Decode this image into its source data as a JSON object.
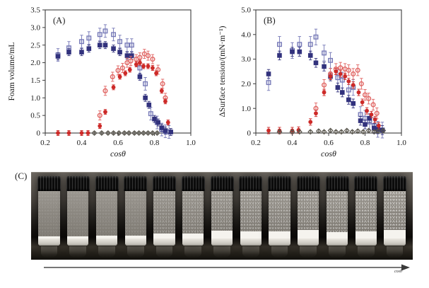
{
  "figure": {
    "background": "#ffffff",
    "axis_color": "#3d3d3d",
    "text_color": "#1a1a1a"
  },
  "chart_data": [
    {
      "id": "A",
      "type": "scatter",
      "panel_label": "(A)",
      "xlabel": "cosθ",
      "ylabel": "Foam volume/mL",
      "xlim": [
        0.2,
        1.0
      ],
      "ylim": [
        0,
        3.5
      ],
      "xticks": [
        0.2,
        0.4,
        0.6,
        0.8,
        1.0
      ],
      "xtick_labels": [
        "0.2",
        "0.4",
        "0.6",
        "0.8",
        "1.0"
      ],
      "yticks": [
        0,
        0.5,
        1.0,
        1.5,
        2.0,
        2.5,
        3.0,
        3.5
      ],
      "ytick_labels": [
        "0",
        "0.5",
        "1.0",
        "1.5",
        "2.0",
        "2.5",
        "3.0",
        "3.5"
      ],
      "grid": false,
      "legend": "none",
      "series": [
        {
          "name": "blue-open-square",
          "marker": "square-open",
          "color": "#7477b6",
          "err": 0.18,
          "points": [
            [
              0.27,
              2.22
            ],
            [
              0.33,
              2.42
            ],
            [
              0.4,
              2.6
            ],
            [
              0.44,
              2.7
            ],
            [
              0.5,
              2.8
            ],
            [
              0.53,
              2.9
            ],
            [
              0.575,
              2.8
            ],
            [
              0.61,
              2.6
            ],
            [
              0.65,
              2.5
            ],
            [
              0.675,
              2.5
            ],
            [
              0.72,
              1.85
            ],
            [
              0.75,
              1.4
            ],
            [
              0.78,
              0.55
            ],
            [
              0.815,
              0.3
            ],
            [
              0.84,
              0.1
            ],
            [
              0.86,
              0.05
            ],
            [
              0.88,
              0.03
            ]
          ]
        },
        {
          "name": "blue-filled-square",
          "marker": "square-filled",
          "color": "#32327d",
          "err": 0.1,
          "points": [
            [
              0.27,
              2.18
            ],
            [
              0.33,
              2.3
            ],
            [
              0.4,
              2.3
            ],
            [
              0.44,
              2.4
            ],
            [
              0.5,
              2.5
            ],
            [
              0.53,
              2.5
            ],
            [
              0.575,
              2.4
            ],
            [
              0.61,
              2.3
            ],
            [
              0.65,
              2.2
            ],
            [
              0.675,
              2.2
            ],
            [
              0.72,
              1.6
            ],
            [
              0.75,
              1.0
            ],
            [
              0.77,
              0.8
            ],
            [
              0.8,
              0.4
            ],
            [
              0.82,
              0.3
            ],
            [
              0.84,
              0.15
            ],
            [
              0.86,
              0.07
            ],
            [
              0.89,
              0.03
            ]
          ]
        },
        {
          "name": "red-open-circle",
          "marker": "circle-open",
          "color": "#e06361",
          "err": 0.13,
          "points": [
            [
              0.5,
              0.5
            ],
            [
              0.53,
              1.2
            ],
            [
              0.57,
              1.6
            ],
            [
              0.6,
              1.78
            ],
            [
              0.625,
              1.85
            ],
            [
              0.65,
              2.0
            ],
            [
              0.67,
              2.05
            ],
            [
              0.7,
              2.1
            ],
            [
              0.72,
              2.15
            ],
            [
              0.745,
              2.25
            ],
            [
              0.765,
              2.2
            ],
            [
              0.79,
              2.1
            ],
            [
              0.82,
              1.8
            ],
            [
              0.845,
              1.4
            ],
            [
              0.86,
              1.0
            ]
          ]
        },
        {
          "name": "red-filled-circle",
          "marker": "circle-filled",
          "color": "#cd2a28",
          "err": 0.07,
          "points": [
            [
              0.27,
              0.0
            ],
            [
              0.33,
              0.0
            ],
            [
              0.4,
              0.0
            ],
            [
              0.435,
              0.0
            ],
            [
              0.5,
              0.2
            ],
            [
              0.53,
              0.6
            ],
            [
              0.575,
              1.3
            ],
            [
              0.61,
              1.6
            ],
            [
              0.64,
              1.7
            ],
            [
              0.665,
              1.8
            ],
            [
              0.7,
              1.95
            ],
            [
              0.72,
              2.0
            ],
            [
              0.74,
              1.9
            ],
            [
              0.765,
              1.9
            ],
            [
              0.79,
              1.85
            ],
            [
              0.81,
              1.7
            ],
            [
              0.84,
              1.2
            ],
            [
              0.86,
              0.9
            ],
            [
              0.875,
              0.3
            ]
          ]
        },
        {
          "name": "gray-open-diamond",
          "marker": "diamond-open",
          "color": "#57544b",
          "err": 0.04,
          "points": [
            [
              0.47,
              0
            ],
            [
              0.51,
              0
            ],
            [
              0.545,
              0
            ],
            [
              0.575,
              0
            ],
            [
              0.605,
              0
            ],
            [
              0.635,
              0
            ],
            [
              0.66,
              0
            ],
            [
              0.69,
              0
            ],
            [
              0.715,
              0
            ],
            [
              0.74,
              0
            ],
            [
              0.765,
              0
            ],
            [
              0.79,
              0
            ],
            [
              0.815,
              0
            ]
          ]
        }
      ]
    },
    {
      "id": "B",
      "type": "scatter",
      "panel_label": "(B)",
      "xlabel": "cosθ",
      "ylabel": "ΔSurface tension/(mN·m⁻¹)",
      "xlim": [
        0.2,
        1.0
      ],
      "ylim": [
        0,
        5.0
      ],
      "xticks": [
        0.2,
        0.4,
        0.6,
        0.8,
        1.0
      ],
      "xtick_labels": [
        "0.2",
        "0.4",
        "0.6",
        "0.8",
        "1.0"
      ],
      "yticks": [
        0,
        1.0,
        2.0,
        3.0,
        4.0,
        5.0
      ],
      "ytick_labels": [
        "0",
        "1.0",
        "2.0",
        "3.0",
        "4.0",
        "5.0"
      ],
      "grid": false,
      "legend": "none",
      "series": [
        {
          "name": "blue-open-square",
          "marker": "square-open",
          "color": "#7477b6",
          "err": 0.32,
          "points": [
            [
              0.27,
              2.05
            ],
            [
              0.33,
              3.6
            ],
            [
              0.4,
              3.35
            ],
            [
              0.44,
              3.6
            ],
            [
              0.5,
              3.6
            ],
            [
              0.53,
              3.9
            ],
            [
              0.575,
              3.25
            ],
            [
              0.61,
              2.95
            ],
            [
              0.65,
              2.25
            ],
            [
              0.675,
              2.15
            ],
            [
              0.71,
              1.75
            ],
            [
              0.735,
              1.85
            ],
            [
              0.775,
              0.75
            ],
            [
              0.8,
              0.6
            ],
            [
              0.825,
              0.45
            ],
            [
              0.85,
              0.3
            ],
            [
              0.87,
              0.15
            ],
            [
              0.895,
              0.12
            ]
          ]
        },
        {
          "name": "blue-filled-square",
          "marker": "square-filled",
          "color": "#32327d",
          "err": 0.18,
          "points": [
            [
              0.27,
              2.4
            ],
            [
              0.33,
              3.15
            ],
            [
              0.4,
              3.3
            ],
            [
              0.44,
              3.3
            ],
            [
              0.5,
              3.15
            ],
            [
              0.53,
              2.85
            ],
            [
              0.575,
              2.7
            ],
            [
              0.61,
              2.3
            ],
            [
              0.65,
              1.85
            ],
            [
              0.675,
              1.65
            ],
            [
              0.71,
              1.35
            ],
            [
              0.735,
              1.2
            ],
            [
              0.775,
              0.5
            ],
            [
              0.8,
              0.35
            ],
            [
              0.825,
              0.6
            ],
            [
              0.85,
              0.2
            ],
            [
              0.87,
              0.15
            ],
            [
              0.895,
              0.12
            ]
          ]
        },
        {
          "name": "red-open-circle",
          "marker": "circle-open",
          "color": "#e06361",
          "err": 0.22,
          "points": [
            [
              0.53,
              1.0
            ],
            [
              0.575,
              1.95
            ],
            [
              0.61,
              2.4
            ],
            [
              0.64,
              2.6
            ],
            [
              0.665,
              2.65
            ],
            [
              0.69,
              2.6
            ],
            [
              0.71,
              2.55
            ],
            [
              0.735,
              2.4
            ],
            [
              0.76,
              2.55
            ],
            [
              0.78,
              2.0
            ],
            [
              0.8,
              1.55
            ],
            [
              0.82,
              1.4
            ],
            [
              0.845,
              1.15
            ],
            [
              0.865,
              0.8
            ]
          ]
        },
        {
          "name": "red-filled-circle",
          "marker": "circle-filled",
          "color": "#cd2a28",
          "err": 0.13,
          "points": [
            [
              0.27,
              0.1
            ],
            [
              0.33,
              0.1
            ],
            [
              0.4,
              0.1
            ],
            [
              0.435,
              0.12
            ],
            [
              0.5,
              0.45
            ],
            [
              0.53,
              0.8
            ],
            [
              0.575,
              1.65
            ],
            [
              0.61,
              2.3
            ],
            [
              0.64,
              2.5
            ],
            [
              0.665,
              2.4
            ],
            [
              0.69,
              2.3
            ],
            [
              0.71,
              2.1
            ],
            [
              0.735,
              1.95
            ],
            [
              0.765,
              1.65
            ],
            [
              0.785,
              1.25
            ],
            [
              0.81,
              0.9
            ],
            [
              0.835,
              0.75
            ],
            [
              0.855,
              0.55
            ],
            [
              0.875,
              0.3
            ]
          ]
        },
        {
          "name": "gray-open-diamond",
          "marker": "diamond-open",
          "color": "#57544b",
          "err": 0.05,
          "points": [
            [
              0.33,
              0.05
            ],
            [
              0.4,
              0.05
            ],
            [
              0.44,
              0.05
            ],
            [
              0.5,
              0.05
            ],
            [
              0.545,
              0.08
            ],
            [
              0.575,
              0.05
            ],
            [
              0.61,
              0.1
            ],
            [
              0.64,
              0.05
            ],
            [
              0.67,
              0.05
            ],
            [
              0.7,
              0.1
            ],
            [
              0.73,
              0.05
            ],
            [
              0.76,
              0.08
            ],
            [
              0.79,
              0.05
            ],
            [
              0.82,
              0.1
            ],
            [
              0.85,
              0.05
            ],
            [
              0.87,
              0.08
            ],
            [
              0.9,
              0.1
            ]
          ]
        }
      ]
    }
  ],
  "photo": {
    "label": "(C)",
    "arrow_label": "cosθ",
    "vials": [
      {
        "foam": 0.04,
        "speckle": 0.1
      },
      {
        "foam": 0.04,
        "speckle": 0.1
      },
      {
        "foam": 0.05,
        "speckle": 0.12
      },
      {
        "foam": 0.05,
        "speckle": 0.15
      },
      {
        "foam": 0.1,
        "speckle": 0.3
      },
      {
        "foam": 0.1,
        "speckle": 0.35
      },
      {
        "foam": 0.14,
        "speckle": 0.4
      },
      {
        "foam": 0.13,
        "speckle": 0.45
      },
      {
        "foam": 0.13,
        "speckle": 0.45
      },
      {
        "foam": 0.16,
        "speckle": 0.5
      },
      {
        "foam": 0.12,
        "speckle": 0.5
      },
      {
        "foam": 0.13,
        "speckle": 0.55
      },
      {
        "foam": 0.16,
        "speckle": 0.6
      }
    ]
  }
}
